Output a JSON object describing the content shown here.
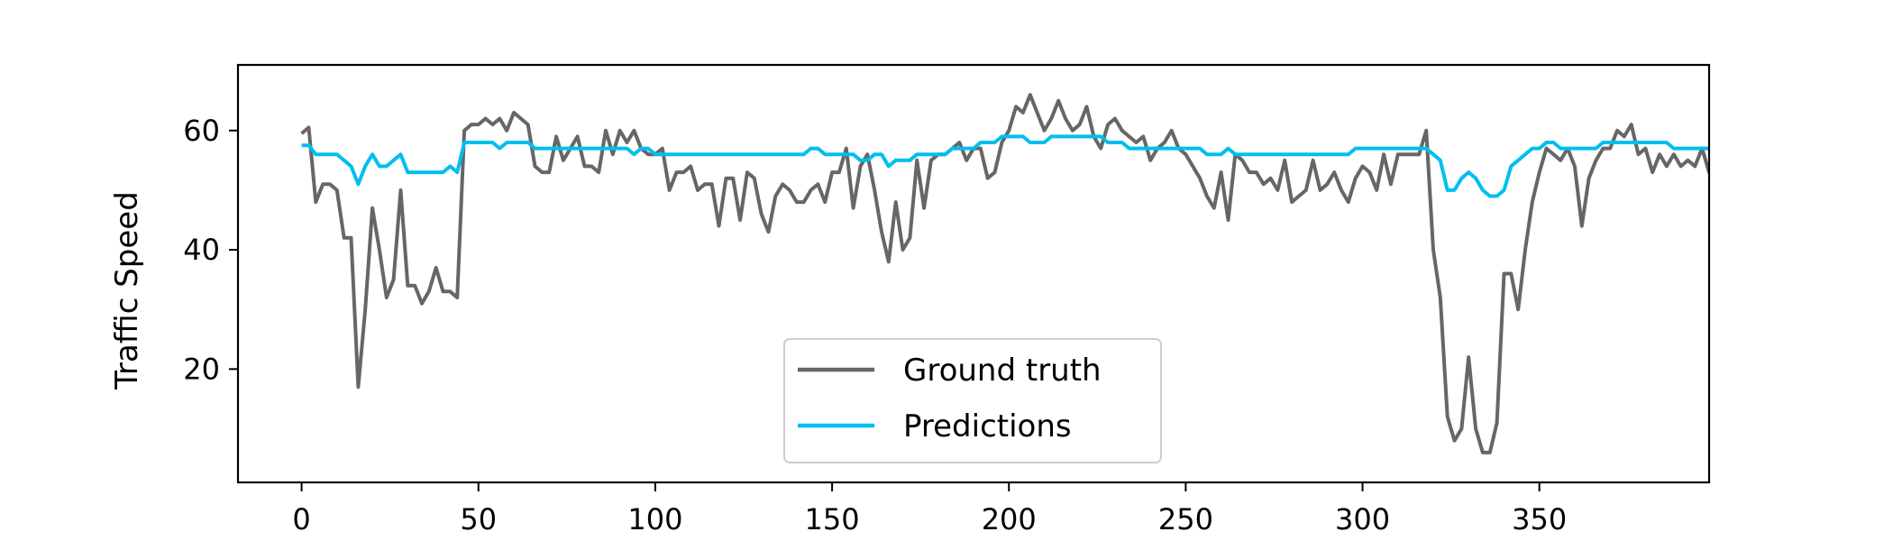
{
  "chart_data": {
    "type": "line",
    "title": "",
    "xlabel": "",
    "ylabel": "Traffic Speed",
    "xlim": [
      -18,
      398
    ],
    "ylim": [
      1,
      71
    ],
    "x_ticks": [
      0,
      50,
      100,
      150,
      200,
      250,
      300,
      350
    ],
    "y_ticks": [
      20,
      40,
      60
    ],
    "grid": false,
    "legend_position": "lower-center",
    "series": [
      {
        "name": "Ground truth",
        "color": "#666666",
        "x_start": 0,
        "x_step": 2,
        "values": [
          59.5,
          60.5,
          48,
          51,
          51,
          50,
          42,
          42,
          17,
          30,
          47,
          40,
          32,
          35,
          50,
          34,
          34,
          31,
          33,
          37,
          33,
          33,
          32,
          60,
          61,
          61,
          62,
          61,
          62,
          60,
          63,
          62,
          61,
          54,
          53,
          53,
          59,
          55,
          57,
          59,
          54,
          54,
          53,
          60,
          56,
          60,
          58,
          60,
          57,
          56,
          56,
          57,
          50,
          53,
          53,
          54,
          50,
          51,
          51,
          44,
          52,
          52,
          45,
          53,
          52,
          46,
          43,
          49,
          51,
          50,
          48,
          48,
          50,
          51,
          48,
          53,
          53,
          57,
          47,
          54,
          56,
          50,
          43,
          38,
          48,
          40,
          42,
          55,
          47,
          55,
          56,
          56,
          57,
          58,
          55,
          57,
          57,
          52,
          53,
          58,
          60,
          64,
          63,
          66,
          63,
          60,
          62,
          65,
          62,
          60,
          61,
          64,
          59,
          57,
          61,
          62,
          60,
          59,
          58,
          59,
          55,
          57,
          58,
          60,
          57,
          56,
          54,
          52,
          49,
          47,
          53,
          45,
          56,
          55,
          53,
          53,
          51,
          52,
          50,
          55,
          48,
          49,
          50,
          55,
          50,
          51,
          53,
          50,
          48,
          52,
          54,
          53,
          50,
          56,
          51,
          56,
          56,
          56,
          56,
          60,
          40,
          32,
          12,
          8,
          10,
          22,
          10,
          6,
          6,
          11,
          36,
          36,
          30,
          40,
          48,
          53,
          57,
          56,
          55,
          57,
          54,
          44,
          52,
          55,
          57,
          57,
          60,
          59,
          61,
          56,
          57,
          53,
          56,
          54,
          56,
          54,
          55,
          54,
          57,
          53,
          53
        ]
      },
      {
        "name": "Predictions",
        "color": "#00bfee",
        "x_start": 0,
        "x_step": 2,
        "values": [
          57.5,
          57.5,
          56,
          56,
          56,
          56,
          55,
          54,
          51,
          54,
          56,
          54,
          54,
          55,
          56,
          53,
          53,
          53,
          53,
          53,
          53,
          54,
          53,
          58,
          58,
          58,
          58,
          58,
          57,
          58,
          58,
          58,
          58,
          57,
          57,
          57,
          57,
          57,
          57,
          57,
          57,
          57,
          57,
          57,
          57,
          57,
          57,
          56,
          57,
          57,
          56,
          56,
          56,
          56,
          56,
          56,
          56,
          56,
          56,
          56,
          56,
          56,
          56,
          56,
          56,
          56,
          56,
          56,
          56,
          56,
          56,
          56,
          57,
          57,
          56,
          56,
          56,
          56,
          56,
          55,
          55,
          56,
          56,
          54,
          55,
          55,
          55,
          56,
          56,
          56,
          56,
          56,
          57,
          57,
          57,
          57,
          58,
          58,
          58,
          59,
          59,
          59,
          59,
          58,
          58,
          58,
          59,
          59,
          59,
          59,
          59,
          59,
          59,
          59,
          58,
          58,
          58,
          57,
          57,
          57,
          57,
          57,
          57,
          57,
          57,
          57,
          57,
          57,
          56,
          56,
          56,
          57,
          56,
          56,
          56,
          56,
          56,
          56,
          56,
          56,
          56,
          56,
          56,
          56,
          56,
          56,
          56,
          56,
          56,
          57,
          57,
          57,
          57,
          57,
          57,
          57,
          57,
          57,
          57,
          57,
          56,
          55,
          50,
          50,
          52,
          53,
          52,
          50,
          49,
          49,
          50,
          54,
          55,
          56,
          57,
          57,
          58,
          58,
          57,
          57,
          57,
          57,
          57,
          57,
          58,
          58,
          58,
          58,
          58,
          58,
          58,
          58,
          58,
          58,
          57,
          57,
          57,
          57,
          57,
          57,
          57
        ]
      }
    ]
  }
}
